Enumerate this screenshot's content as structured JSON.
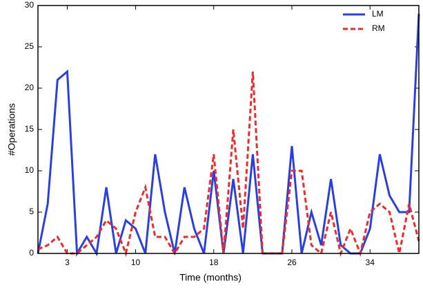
{
  "chart_data": {
    "type": "line",
    "xlabel": "Time (months)",
    "ylabel": "#Operations",
    "x": [
      0,
      1,
      2,
      3,
      4,
      5,
      6,
      7,
      8,
      9,
      10,
      11,
      12,
      13,
      14,
      15,
      16,
      17,
      18,
      19,
      20,
      21,
      22,
      23,
      24,
      25,
      26,
      27,
      28,
      29,
      30,
      31,
      32,
      33,
      34,
      35,
      36,
      37,
      38,
      39
    ],
    "series": [
      {
        "name": "LM",
        "color": "#2a3fe0",
        "dash": "solid",
        "values": [
          0,
          6,
          21,
          22,
          0,
          2,
          0,
          8,
          0,
          4,
          3,
          0,
          12,
          5,
          0,
          8,
          3,
          0,
          10,
          0,
          9,
          0,
          12,
          0,
          0,
          0,
          13,
          0,
          5,
          1,
          9,
          1,
          0,
          0,
          3,
          12,
          7,
          5,
          5,
          29
        ]
      },
      {
        "name": "RM",
        "color": "#f02a2a",
        "dash": "dashed",
        "values": [
          0.5,
          1,
          2,
          0,
          0,
          1,
          2,
          4,
          3,
          0,
          5,
          8,
          2,
          2,
          0,
          2,
          2,
          3,
          12,
          0,
          15,
          3,
          22,
          0,
          0,
          0,
          10,
          10,
          1,
          0,
          5,
          0,
          3,
          0,
          5,
          6,
          5,
          0,
          6,
          1.5
        ]
      }
    ],
    "xlim": [
      0,
      39
    ],
    "xticks": [
      3,
      10,
      18,
      26,
      34
    ],
    "ylim": [
      0,
      30
    ],
    "yticks": [
      0,
      5,
      10,
      15,
      20,
      25,
      30
    ],
    "legend": "top-right"
  }
}
